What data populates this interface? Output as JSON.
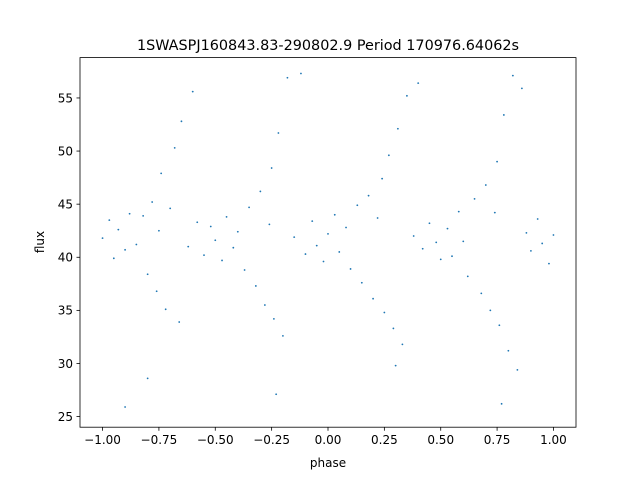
{
  "chart_data": {
    "type": "scatter",
    "title": "1SWASPJ160843.83-290802.9 Period 170976.64062s",
    "xlabel": "phase",
    "ylabel": "flux",
    "xlim": [
      -1.1,
      1.1
    ],
    "ylim": [
      24.0,
      58.8
    ],
    "xticks": [
      -1.0,
      -0.75,
      -0.5,
      -0.25,
      0.0,
      0.25,
      0.5,
      0.75,
      1.0
    ],
    "xtick_labels": [
      "−1.00",
      "−0.75",
      "−0.50",
      "−0.25",
      "0.00",
      "0.25",
      "0.50",
      "0.75",
      "1.00"
    ],
    "yticks": [
      25,
      30,
      35,
      40,
      45,
      50,
      55
    ],
    "ytick_labels": [
      "25",
      "30",
      "35",
      "40",
      "45",
      "50",
      "55"
    ],
    "grid": false,
    "legend": "none",
    "marker_color": "#1f77b4",
    "series": [
      {
        "values_summary": "phase-folded light curve repeated over two cycles; flux mostly 36-46 around a median near 42; dense clumps with wider spread near phase -0.75, -0.25, 0.25, 0.75; sparse outliers up to about 57.5 and down to about 26",
        "points": [
          [
            -1.0,
            41.8
          ],
          [
            -0.97,
            43.5
          ],
          [
            -0.95,
            39.9
          ],
          [
            -0.93,
            42.6
          ],
          [
            -0.9,
            40.7
          ],
          [
            -0.88,
            44.1
          ],
          [
            -0.85,
            41.2
          ],
          [
            -0.82,
            43.9
          ],
          [
            -0.8,
            38.4
          ],
          [
            -0.78,
            45.2
          ],
          [
            -0.76,
            36.8
          ],
          [
            -0.75,
            42.5
          ],
          [
            -0.74,
            47.9
          ],
          [
            -0.72,
            35.1
          ],
          [
            -0.7,
            44.6
          ],
          [
            -0.68,
            50.3
          ],
          [
            -0.66,
            33.9
          ],
          [
            -0.65,
            52.8
          ],
          [
            -0.62,
            41.0
          ],
          [
            -0.6,
            55.6
          ],
          [
            -0.58,
            43.3
          ],
          [
            -0.55,
            40.2
          ],
          [
            -0.52,
            42.9
          ],
          [
            -0.5,
            41.6
          ],
          [
            -0.47,
            39.7
          ],
          [
            -0.45,
            43.8
          ],
          [
            -0.42,
            40.9
          ],
          [
            -0.4,
            42.4
          ],
          [
            -0.37,
            38.8
          ],
          [
            -0.35,
            44.7
          ],
          [
            -0.32,
            37.3
          ],
          [
            -0.3,
            46.2
          ],
          [
            -0.28,
            35.5
          ],
          [
            -0.26,
            43.1
          ],
          [
            -0.25,
            48.4
          ],
          [
            -0.24,
            34.2
          ],
          [
            -0.22,
            51.7
          ],
          [
            -0.2,
            32.6
          ],
          [
            -0.18,
            56.9
          ],
          [
            -0.15,
            41.9
          ],
          [
            -0.12,
            57.3
          ],
          [
            -0.1,
            40.3
          ],
          [
            -0.07,
            43.4
          ],
          [
            -0.05,
            41.1
          ],
          [
            -0.02,
            39.6
          ],
          [
            0.0,
            42.2
          ],
          [
            0.03,
            44.0
          ],
          [
            0.05,
            40.5
          ],
          [
            0.08,
            42.8
          ],
          [
            0.1,
            38.9
          ],
          [
            0.13,
            44.9
          ],
          [
            0.15,
            37.6
          ],
          [
            0.18,
            45.8
          ],
          [
            0.2,
            36.1
          ],
          [
            0.22,
            43.7
          ],
          [
            0.24,
            47.4
          ],
          [
            0.25,
            34.8
          ],
          [
            0.27,
            49.6
          ],
          [
            0.29,
            33.3
          ],
          [
            0.31,
            52.1
          ],
          [
            0.33,
            31.8
          ],
          [
            0.35,
            55.2
          ],
          [
            0.38,
            42.0
          ],
          [
            0.4,
            56.4
          ],
          [
            0.42,
            40.8
          ],
          [
            0.45,
            43.2
          ],
          [
            0.48,
            41.4
          ],
          [
            0.5,
            39.8
          ],
          [
            0.53,
            42.7
          ],
          [
            0.55,
            40.1
          ],
          [
            0.58,
            44.3
          ],
          [
            0.6,
            41.5
          ],
          [
            0.62,
            38.2
          ],
          [
            0.65,
            45.5
          ],
          [
            0.68,
            36.6
          ],
          [
            0.7,
            46.8
          ],
          [
            0.72,
            35.0
          ],
          [
            0.74,
            44.2
          ],
          [
            0.75,
            49.0
          ],
          [
            0.76,
            33.6
          ],
          [
            0.78,
            53.4
          ],
          [
            0.8,
            31.2
          ],
          [
            0.82,
            57.1
          ],
          [
            0.84,
            29.4
          ],
          [
            0.86,
            55.9
          ],
          [
            0.88,
            42.3
          ],
          [
            0.9,
            40.6
          ],
          [
            0.93,
            43.6
          ],
          [
            0.95,
            41.3
          ],
          [
            0.98,
            39.4
          ],
          [
            1.0,
            42.1
          ],
          [
            -0.8,
            28.6
          ],
          [
            -0.23,
            27.1
          ],
          [
            0.3,
            29.8
          ],
          [
            0.77,
            26.2
          ],
          [
            -0.9,
            25.9
          ]
        ]
      }
    ]
  }
}
